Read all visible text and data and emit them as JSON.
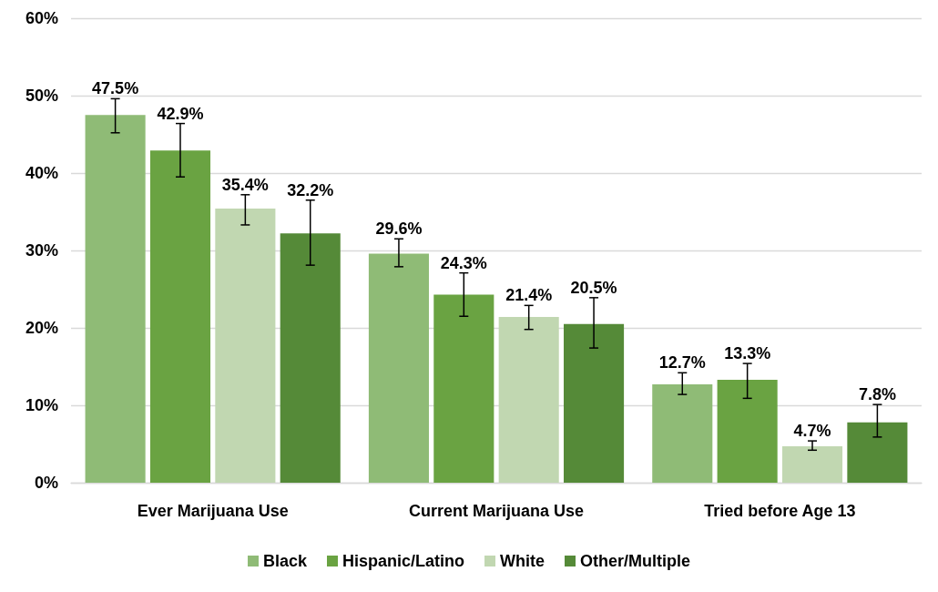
{
  "chart_data": {
    "type": "bar",
    "categories": [
      "Ever Marijuana Use",
      "Current Marijuana Use",
      "Tried before Age 13"
    ],
    "series": [
      {
        "name": "Black",
        "color": "#8fbb76",
        "values": [
          47.5,
          29.6,
          12.7
        ],
        "errors": [
          [
            45.2,
            49.6
          ],
          [
            27.9,
            31.5
          ],
          [
            11.4,
            14.2
          ]
        ]
      },
      {
        "name": "Hispanic/Latino",
        "color": "#6aa342",
        "values": [
          42.9,
          24.3,
          13.3
        ],
        "errors": [
          [
            39.5,
            46.4
          ],
          [
            21.5,
            27.1
          ],
          [
            10.9,
            15.4
          ]
        ]
      },
      {
        "name": "White",
        "color": "#c1d7b1",
        "values": [
          35.4,
          21.4,
          4.7
        ],
        "errors": [
          [
            33.3,
            37.2
          ],
          [
            19.8,
            22.9
          ],
          [
            4.2,
            5.4
          ]
        ]
      },
      {
        "name": "Other/Multiple",
        "color": "#558a38",
        "values": [
          32.2,
          20.5,
          7.8
        ],
        "errors": [
          [
            28.1,
            36.5
          ],
          [
            17.4,
            23.9
          ],
          [
            5.9,
            10.1
          ]
        ]
      }
    ],
    "ylim": [
      0,
      60
    ],
    "yticks": [
      {
        "value": 0,
        "label": "0%"
      },
      {
        "value": 10,
        "label": "10%"
      },
      {
        "value": 20,
        "label": "20%"
      },
      {
        "value": 30,
        "label": "30%"
      },
      {
        "value": 40,
        "label": "40%"
      },
      {
        "value": 50,
        "label": "50%"
      },
      {
        "value": 60,
        "label": "60%"
      }
    ],
    "value_labels": [
      [
        "47.5%",
        "29.6%",
        "12.7%"
      ],
      [
        "42.9%",
        "24.3%",
        "13.3%"
      ],
      [
        "35.4%",
        "21.4%",
        "4.7%"
      ],
      [
        "32.2%",
        "20.5%",
        "7.8%"
      ]
    ],
    "grid": "y",
    "legend": "bottom"
  }
}
